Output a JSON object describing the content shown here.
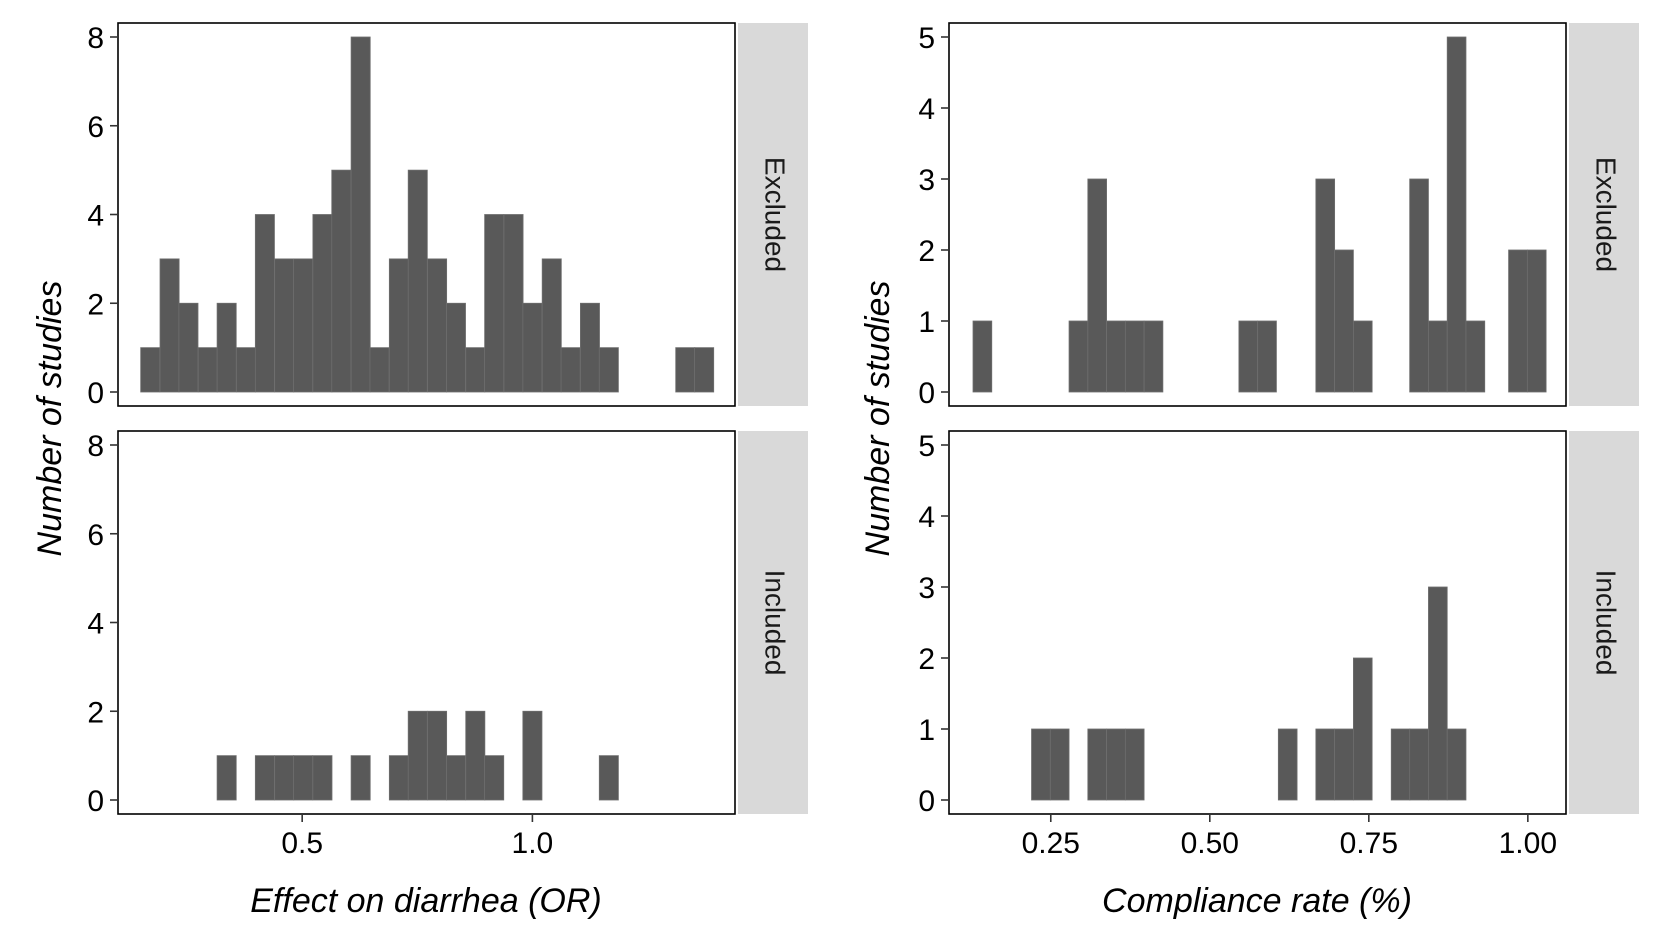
{
  "colors": {
    "bar_fill": "#595959",
    "bar_outline": "#6e6e6e",
    "strip_background": "#d9d9d9",
    "panel_border": "#000000"
  },
  "chart_data": [
    {
      "type": "bar",
      "description": "faceted histogram",
      "xlabel": "Effect on diarrhea (OR)",
      "ylabel": "Number of studies",
      "xlim": [
        0.1,
        1.44
      ],
      "ylim": [
        0,
        8
      ],
      "x_ticks": [
        "0.5",
        "1.0"
      ],
      "x_tick_values": [
        0.5,
        1.0
      ],
      "y_ticks": [
        "0",
        "2",
        "4",
        "6",
        "8"
      ],
      "y_tick_values": [
        0,
        2,
        4,
        6,
        8
      ],
      "bin_width": 0.0415,
      "grid": false,
      "facets": [
        {
          "strip_label": "Excluded",
          "bins": [
            {
              "x": 0.17,
              "count": 1
            },
            {
              "x": 0.212,
              "count": 3
            },
            {
              "x": 0.253,
              "count": 2
            },
            {
              "x": 0.295,
              "count": 1
            },
            {
              "x": 0.336,
              "count": 2
            },
            {
              "x": 0.378,
              "count": 1
            },
            {
              "x": 0.419,
              "count": 4
            },
            {
              "x": 0.461,
              "count": 3
            },
            {
              "x": 0.502,
              "count": 3
            },
            {
              "x": 0.544,
              "count": 4
            },
            {
              "x": 0.585,
              "count": 5
            },
            {
              "x": 0.627,
              "count": 8
            },
            {
              "x": 0.668,
              "count": 1
            },
            {
              "x": 0.71,
              "count": 3
            },
            {
              "x": 0.751,
              "count": 5
            },
            {
              "x": 0.793,
              "count": 3
            },
            {
              "x": 0.834,
              "count": 2
            },
            {
              "x": 0.876,
              "count": 1
            },
            {
              "x": 0.917,
              "count": 4
            },
            {
              "x": 0.959,
              "count": 4
            },
            {
              "x": 1.0,
              "count": 2
            },
            {
              "x": 1.042,
              "count": 3
            },
            {
              "x": 1.083,
              "count": 1
            },
            {
              "x": 1.125,
              "count": 2
            },
            {
              "x": 1.166,
              "count": 1
            },
            {
              "x": 1.332,
              "count": 1
            },
            {
              "x": 1.373,
              "count": 1
            }
          ]
        },
        {
          "strip_label": "Included",
          "bins": [
            {
              "x": 0.336,
              "count": 1
            },
            {
              "x": 0.419,
              "count": 1
            },
            {
              "x": 0.461,
              "count": 1
            },
            {
              "x": 0.502,
              "count": 1
            },
            {
              "x": 0.544,
              "count": 1
            },
            {
              "x": 0.627,
              "count": 1
            },
            {
              "x": 0.71,
              "count": 1
            },
            {
              "x": 0.751,
              "count": 2
            },
            {
              "x": 0.793,
              "count": 2
            },
            {
              "x": 0.834,
              "count": 1
            },
            {
              "x": 0.876,
              "count": 2
            },
            {
              "x": 0.917,
              "count": 1
            },
            {
              "x": 1.0,
              "count": 2
            },
            {
              "x": 1.166,
              "count": 1
            }
          ]
        }
      ]
    },
    {
      "type": "bar",
      "description": "faceted histogram",
      "xlabel": "Compliance rate (%)",
      "ylabel": "Number of studies",
      "xlim": [
        0.09,
        1.06
      ],
      "ylim": [
        0,
        5
      ],
      "x_ticks": [
        "0.25",
        "0.50",
        "0.75",
        "1.00"
      ],
      "x_tick_values": [
        0.25,
        0.5,
        0.75,
        1.0
      ],
      "y_ticks": [
        "0",
        "1",
        "2",
        "3",
        "4",
        "5"
      ],
      "y_tick_values": [
        0,
        1,
        2,
        3,
        4,
        5
      ],
      "bin_width": 0.0295,
      "grid": false,
      "facets": [
        {
          "strip_label": "Excluded",
          "bins": [
            {
              "x": 0.1425,
              "count": 1
            },
            {
              "x": 0.2935,
              "count": 1
            },
            {
              "x": 0.323,
              "count": 3
            },
            {
              "x": 0.3525,
              "count": 1
            },
            {
              "x": 0.382,
              "count": 1
            },
            {
              "x": 0.4115,
              "count": 1
            },
            {
              "x": 0.5605,
              "count": 1
            },
            {
              "x": 0.59,
              "count": 1
            },
            {
              "x": 0.6815,
              "count": 3
            },
            {
              "x": 0.711,
              "count": 2
            },
            {
              "x": 0.7405,
              "count": 1
            },
            {
              "x": 0.829,
              "count": 3
            },
            {
              "x": 0.8585,
              "count": 1
            },
            {
              "x": 0.888,
              "count": 5
            },
            {
              "x": 0.9175,
              "count": 1
            },
            {
              "x": 0.9845,
              "count": 2
            },
            {
              "x": 1.014,
              "count": 2
            }
          ]
        },
        {
          "strip_label": "Included",
          "bins": [
            {
              "x": 0.2345,
              "count": 1
            },
            {
              "x": 0.264,
              "count": 1
            },
            {
              "x": 0.323,
              "count": 1
            },
            {
              "x": 0.3525,
              "count": 1
            },
            {
              "x": 0.382,
              "count": 1
            },
            {
              "x": 0.6225,
              "count": 1
            },
            {
              "x": 0.6815,
              "count": 1
            },
            {
              "x": 0.711,
              "count": 1
            },
            {
              "x": 0.7405,
              "count": 2
            },
            {
              "x": 0.8,
              "count": 1
            },
            {
              "x": 0.829,
              "count": 1
            },
            {
              "x": 0.8585,
              "count": 3
            },
            {
              "x": 0.888,
              "count": 1
            }
          ]
        }
      ]
    }
  ]
}
